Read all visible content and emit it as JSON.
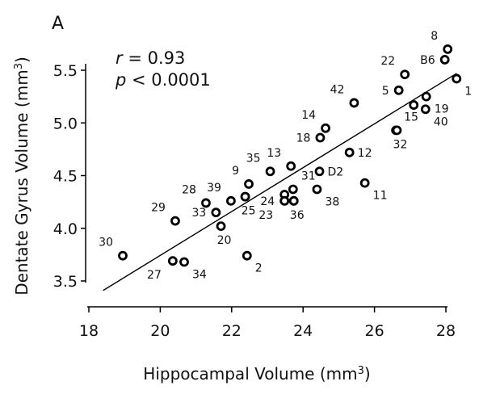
{
  "chart_data": {
    "type": "scatter",
    "panel_label": "A",
    "xlabel": "Hippocampal Volume (mm",
    "xlabel_sup": "3",
    "xlabel_end": ")",
    "ylabel": "Dentate Gyrus Volume (mm",
    "ylabel_sup": "3",
    "ylabel_end": ")",
    "xlim": [
      18,
      28
    ],
    "ylim": [
      3.5,
      5.5
    ],
    "x_ticks": [
      18,
      20,
      22,
      24,
      26,
      28
    ],
    "y_ticks": [
      3.5,
      4.0,
      4.5,
      5.0,
      5.5
    ],
    "x_tick_labels": [
      "18",
      "20",
      "22",
      "24",
      "26",
      "28"
    ],
    "y_tick_labels": [
      "3.5",
      "4.0",
      "4.5",
      "5.0",
      "5.5"
    ],
    "stats": {
      "r_symbol": "r",
      "r_value": " = 0.93",
      "p_symbol": "p",
      "p_value": " < 0.0001"
    },
    "regression_line": {
      "x": [
        18.4,
        28.3
      ],
      "y": [
        3.41,
        5.47
      ]
    },
    "grid": false,
    "marker_color": "#000000",
    "points": [
      {
        "label": "8",
        "x": 28.05,
        "y": 5.7,
        "lp": "tl"
      },
      {
        "label": "B6",
        "x": 27.97,
        "y": 5.6,
        "lp": "l"
      },
      {
        "label": "22",
        "x": 26.85,
        "y": 5.46,
        "lp": "tl"
      },
      {
        "label": "1",
        "x": 28.3,
        "y": 5.42,
        "lp": "br"
      },
      {
        "label": "5",
        "x": 26.68,
        "y": 5.31,
        "lp": "l"
      },
      {
        "label": "19",
        "x": 27.45,
        "y": 5.25,
        "lp": "br"
      },
      {
        "label": "42",
        "x": 25.43,
        "y": 5.19,
        "lp": "tl"
      },
      {
        "label": "",
        "x": 27.1,
        "y": 5.17,
        "lp": "r"
      },
      {
        "label": "40",
        "x": 27.43,
        "y": 5.13,
        "lp": "br"
      },
      {
        "label": "15",
        "x": 26.6,
        "y": 4.93,
        "lp": "tr"
      },
      {
        "label": "32",
        "x": 26.63,
        "y": 4.93,
        "lp": "b"
      },
      {
        "label": "14",
        "x": 24.63,
        "y": 4.95,
        "lp": "tl"
      },
      {
        "label": "18",
        "x": 24.48,
        "y": 4.86,
        "lp": "l"
      },
      {
        "label": "12",
        "x": 25.3,
        "y": 4.72,
        "lp": "r"
      },
      {
        "label": "13",
        "x": 23.66,
        "y": 4.59,
        "lp": "tl"
      },
      {
        "label": "35",
        "x": 23.08,
        "y": 4.54,
        "lp": "tl"
      },
      {
        "label": "D2",
        "x": 24.46,
        "y": 4.54,
        "lp": "r"
      },
      {
        "label": "11",
        "x": 25.73,
        "y": 4.43,
        "lp": "br"
      },
      {
        "label": "9",
        "x": 22.48,
        "y": 4.42,
        "lp": "tl"
      },
      {
        "label": "31",
        "x": 23.72,
        "y": 4.37,
        "lp": "tr"
      },
      {
        "label": "",
        "x": 23.48,
        "y": 4.32,
        "lp": "r"
      },
      {
        "label": "24",
        "x": 23.48,
        "y": 4.26,
        "lp": "l"
      },
      {
        "label": "28",
        "x": 21.28,
        "y": 4.24,
        "lp": "tl"
      },
      {
        "label": "39",
        "x": 21.98,
        "y": 4.26,
        "lp": "tl"
      },
      {
        "label": "",
        "x": 22.38,
        "y": 4.3,
        "lp": "r"
      },
      {
        "label": "",
        "x": 23.74,
        "y": 4.26,
        "lp": "r"
      },
      {
        "label": "38",
        "x": 24.39,
        "y": 4.37,
        "lp": "br"
      },
      {
        "label": "25",
        "x": 22.38,
        "y": 4.3,
        "lp": "b"
      },
      {
        "label": "23",
        "x": 23.48,
        "y": 4.26,
        "lp": "bl"
      },
      {
        "label": "36",
        "x": 23.74,
        "y": 4.26,
        "lp": "b"
      },
      {
        "label": "29",
        "x": 20.42,
        "y": 4.07,
        "lp": "tl"
      },
      {
        "label": "33",
        "x": 21.56,
        "y": 4.15,
        "lp": "l"
      },
      {
        "label": "20",
        "x": 21.7,
        "y": 4.02,
        "lp": "b"
      },
      {
        "label": "30",
        "x": 18.95,
        "y": 3.74,
        "lp": "tl"
      },
      {
        "label": "2",
        "x": 22.43,
        "y": 3.74,
        "lp": "br"
      },
      {
        "label": "27",
        "x": 20.35,
        "y": 3.69,
        "lp": "bl"
      },
      {
        "label": "34",
        "x": 20.67,
        "y": 3.68,
        "lp": "br"
      }
    ]
  }
}
